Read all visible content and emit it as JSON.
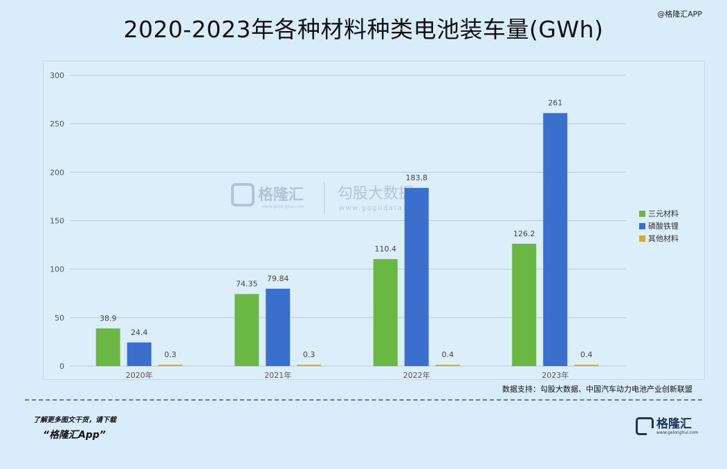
{
  "header": {
    "title": "2020-2023年各种材料种类电池装车量(GWh)",
    "top_watermark": "@格隆汇APP"
  },
  "watermark": {
    "brand1": "格隆汇",
    "brand1_url": "www.gelonghui.com",
    "brand2": "勾股大数据",
    "brand2_url": "www.gogudata.com"
  },
  "colors": {
    "series1": "#6ab843",
    "series2": "#3b6fce",
    "series3": "#d3ad27",
    "grid": "#b9c9d6",
    "axis_text": "#555555"
  },
  "chart_data": {
    "type": "bar",
    "categories": [
      "2020年",
      "2021年",
      "2022年",
      "2023年"
    ],
    "series": [
      {
        "name": "三元材料",
        "values": [
          38.9,
          74.35,
          110.4,
          126.2
        ],
        "labels": [
          "38.9",
          "74.35",
          "110.4",
          "126.2"
        ]
      },
      {
        "name": "磷酸铁锂",
        "values": [
          24.4,
          79.84,
          183.8,
          261
        ],
        "labels": [
          "24.4",
          "79.84",
          "183.8",
          "261"
        ]
      },
      {
        "name": "其他材料",
        "values": [
          0.3,
          0.3,
          0.4,
          0.4
        ],
        "labels": [
          "0.3",
          "0.3",
          "0.4",
          "0.4"
        ]
      }
    ],
    "ylim": [
      0,
      300
    ],
    "yticks": [
      "0",
      "50",
      "100",
      "150",
      "200",
      "250",
      "300"
    ],
    "grid": true,
    "legend_position": "right"
  },
  "source": "数据支持：勾股大数据、中国汽车动力电池产业创新联盟",
  "footer": {
    "note": "了解更多图文干货，请下载",
    "app": "“格隆汇App”",
    "logo_name": "格隆汇",
    "logo_url": "www.gelonghui.com"
  }
}
